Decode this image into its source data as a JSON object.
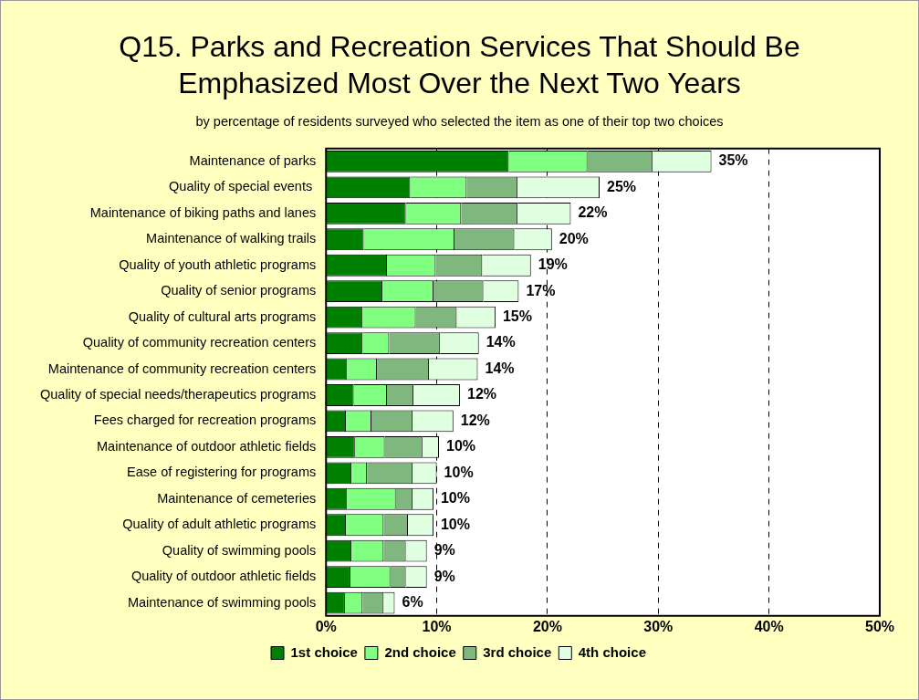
{
  "chart_data": {
    "type": "bar",
    "orientation": "horizontal",
    "stacked": true,
    "title": "Q15. Parks and Recreation Services That Should Be Emphasized Most Over the Next Two Years",
    "subtitle": "by percentage of residents surveyed who selected the item as one of their top two choices",
    "categories": [
      "Maintenance of parks",
      "Quality of special events ",
      "Maintenance of biking paths and lanes",
      "Maintenance of walking trails",
      "Quality of youth athletic programs",
      "Quality of senior programs",
      "Quality of cultural arts programs",
      "Quality of community recreation centers",
      "Maintenance of community recreation centers",
      "Quality of special needs/therapeutics programs",
      "Fees charged for recreation programs",
      "Maintenance of outdoor athletic fields",
      "Ease of registering for programs",
      "Maintenance of cemeteries",
      "Quality of adult athletic programs",
      "Quality of swimming pools",
      "Quality of outdoor athletic fields",
      "Maintenance of swimming pools"
    ],
    "series": [
      {
        "name": "1st choice",
        "color": "#008000",
        "values": [
          16.5,
          7.6,
          7.2,
          3.4,
          5.5,
          5.1,
          3.3,
          3.3,
          1.9,
          2.5,
          1.8,
          2.6,
          2.3,
          1.9,
          1.8,
          2.3,
          2.2,
          1.7
        ]
      },
      {
        "name": "2nd choice",
        "color": "#80ff80",
        "values": [
          7.1,
          5.1,
          5.0,
          8.2,
          4.4,
          4.6,
          4.8,
          2.4,
          2.7,
          3.0,
          2.3,
          2.7,
          1.4,
          4.4,
          3.4,
          2.9,
          3.6,
          1.6
        ]
      },
      {
        "name": "3rd choice",
        "color": "#7fb77f",
        "values": [
          5.9,
          4.6,
          5.1,
          5.4,
          4.2,
          4.5,
          3.7,
          4.6,
          4.7,
          2.4,
          3.7,
          3.4,
          4.1,
          1.5,
          2.2,
          2.0,
          1.4,
          1.9
        ]
      },
      {
        "name": "4th choice",
        "color": "#e0ffe0",
        "values": [
          5.3,
          7.4,
          4.8,
          3.4,
          4.4,
          3.2,
          3.5,
          3.5,
          4.4,
          4.2,
          3.7,
          1.5,
          2.2,
          1.9,
          2.3,
          1.9,
          1.9,
          1.0
        ]
      }
    ],
    "totals": [
      "35%",
      "25%",
      "22%",
      "20%",
      "19%",
      "17%",
      "15%",
      "14%",
      "14%",
      "12%",
      "12%",
      "10%",
      "10%",
      "10%",
      "10%",
      "9%",
      "9%",
      "6%"
    ],
    "xlim": [
      0,
      50
    ],
    "xticks": [
      {
        "value": 0,
        "label": "0%"
      },
      {
        "value": 10,
        "label": "10%"
      },
      {
        "value": 20,
        "label": "20%"
      },
      {
        "value": 30,
        "label": "30%"
      },
      {
        "value": 40,
        "label": "40%"
      },
      {
        "value": 50,
        "label": "50%"
      }
    ],
    "grid": "x",
    "legend": "bottom"
  }
}
